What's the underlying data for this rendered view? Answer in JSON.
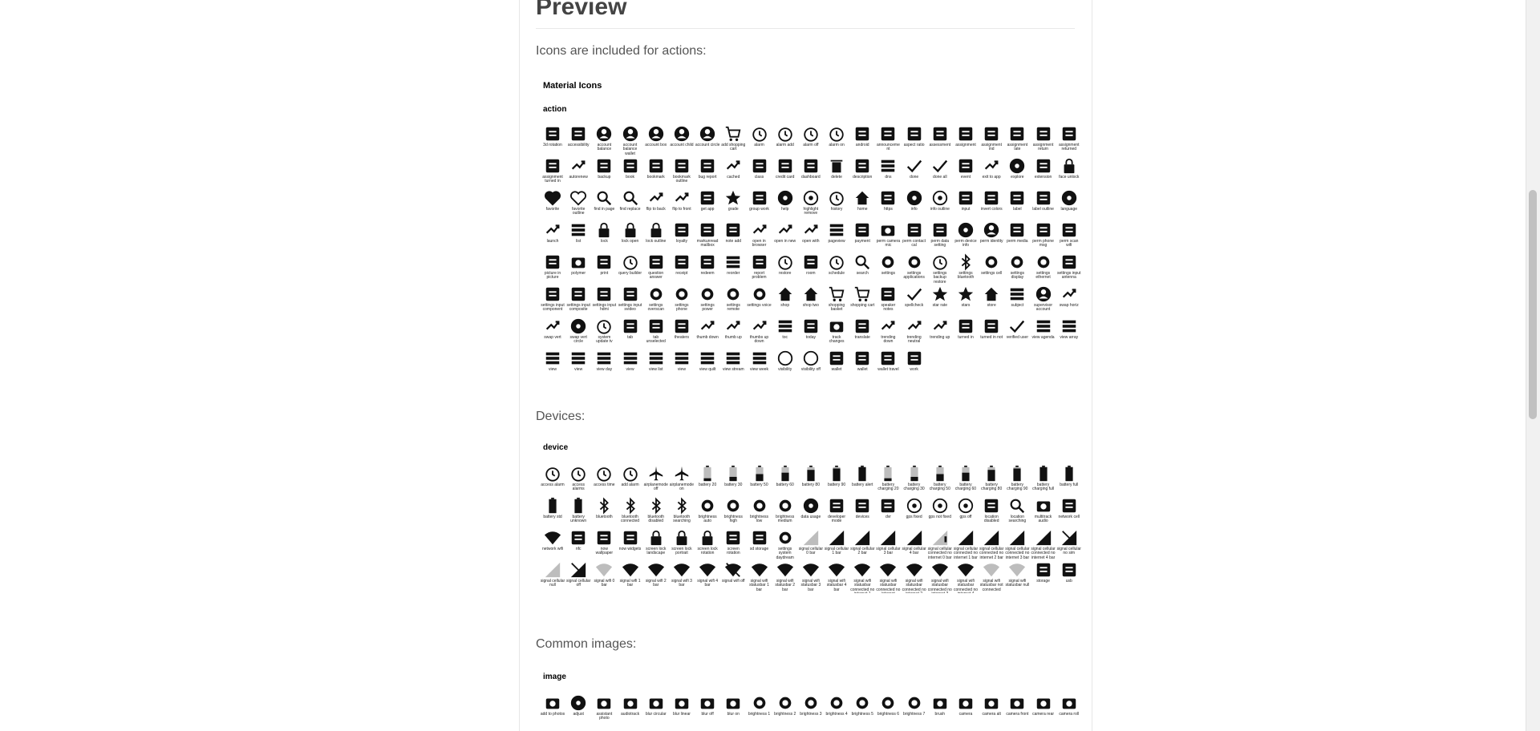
{
  "title": "Preview",
  "sections": [
    {
      "id": "actions",
      "text": "Icons are included for actions:",
      "library": "Material Icons",
      "category": "action",
      "icons": [
        "3d rotation",
        "accessibility",
        "account balance",
        "account balance wallet",
        "account box",
        "account child",
        "account circle",
        "add shopping cart",
        "alarm",
        "alarm add",
        "alarm off",
        "alarm on",
        "android",
        "announcement",
        "aspect ratio",
        "assessment",
        "assignment",
        "assignment ind",
        "assignment late",
        "assignment return",
        "assignment returned",
        "assignment turned in",
        "autorenew",
        "backup",
        "book",
        "bookmark",
        "bookmark outline",
        "bug report",
        "cached",
        "class",
        "credit card",
        "dashboard",
        "delete",
        "description",
        "dns",
        "done",
        "done all",
        "event",
        "exit to app",
        "explore",
        "extension",
        "face unlock",
        "favorite",
        "favorite outline",
        "find in page",
        "find replace",
        "flip to back",
        "flip to front",
        "get app",
        "grade",
        "group work",
        "help",
        "highlight remove",
        "history",
        "home",
        "https",
        "info",
        "info outline",
        "input",
        "invert colors",
        "label",
        "label outline",
        "language",
        "launch",
        "list",
        "lock",
        "lock open",
        "lock outline",
        "loyalty",
        "markunread mailbox",
        "note add",
        "open in browser",
        "open in new",
        "open with",
        "pageview",
        "payment",
        "perm camera mic",
        "perm contact cal",
        "perm data setting",
        "perm device info",
        "perm identity",
        "perm media",
        "perm phone msg",
        "perm scan wifi",
        "picture in picture",
        "polymer",
        "print",
        "query builder",
        "question answer",
        "receipt",
        "redeem",
        "reorder",
        "report problem",
        "restore",
        "room",
        "schedule",
        "search",
        "settings",
        "settings applications",
        "settings backup restore",
        "settings bluetooth",
        "settings cell",
        "settings display",
        "settings ethernet",
        "settings input antenna",
        "settings input component",
        "settings input composite",
        "settings input hdmi",
        "settings input svideo",
        "settings overscan",
        "settings phone",
        "settings power",
        "settings remote",
        "settings voice",
        "shop",
        "shop two",
        "shopping basket",
        "shopping cart",
        "speaker notes",
        "spellcheck",
        "star rate",
        "stars",
        "store",
        "subject",
        "supervisor account",
        "swap horiz",
        "swap vert",
        "swap vert circle",
        "system update tv",
        "tab",
        "tab unselected",
        "theaters",
        "thumb down",
        "thumb up",
        "thumbs up down",
        "toc",
        "today",
        "track changes",
        "translate",
        "trending down",
        "trending neutral",
        "trending up",
        "turned in",
        "turned in not",
        "verified user",
        "view agenda",
        "view array",
        "view",
        "view",
        "view day",
        "view",
        "view list",
        "view",
        "view quilt",
        "view stream",
        "view week",
        "visibility",
        "visibility off",
        "wallet",
        "wallet",
        "wallet travel",
        "work"
      ]
    },
    {
      "id": "devices",
      "text": "Devices:",
      "library": "",
      "category": "device",
      "icons": [
        "access alarm",
        "access alarms",
        "access time",
        "add alarm",
        "airplanemode off",
        "airplanemode on",
        "battery 20",
        "battery 30",
        "battery 50",
        "battery 60",
        "battery 80",
        "battery 90",
        "battery alert",
        "battery charging 20",
        "battery charging 30",
        "battery charging 50",
        "battery charging 60",
        "battery charging 80",
        "battery charging 90",
        "battery charging full",
        "battery full",
        "battery std",
        "battery unknown",
        "bluetooth",
        "bluetooth connected",
        "bluetooth disabled",
        "bluetooth searching",
        "brightness auto",
        "brightness high",
        "brightness low",
        "brightness medium",
        "data usage",
        "developer mode",
        "devices",
        "dvr",
        "gps fixed",
        "gps not fixed",
        "gps off",
        "location disabled",
        "location searching",
        "multitrack audio",
        "network cell",
        "network wifi",
        "nfc",
        "now wallpaper",
        "now widgets",
        "screen lock landscape",
        "screen lock portrait",
        "screen lock rotation",
        "screen rotation",
        "sd storage",
        "settings system daydream",
        "signal cellular 0 bar",
        "signal cellular 1 bar",
        "signal cellular 2 bar",
        "signal cellular 3 bar",
        "signal cellular 4 bar",
        "signal cellular connected no internet 0 bar",
        "signal cellular connected no internet 1 bar",
        "signal cellular connected no internet 2 bar",
        "signal cellular connected no internet 3 bar",
        "signal cellular connected no internet 4 bar",
        "signal cellular no sim",
        "signal cellular null",
        "signal cellular off",
        "signal wifi 0 bar",
        "signal wifi 1 bar",
        "signal wifi 2 bar",
        "signal wifi 3 bar",
        "signal wifi 4 bar",
        "signal wifi off",
        "signal wifi statusbar 1 bar",
        "signal wifi statusbar 2 bar",
        "signal wifi statusbar 3 bar",
        "signal wifi statusbar 4 bar",
        "signal wifi statusbar connected no internet 1",
        "signal wifi statusbar connected no internet",
        "signal wifi statusbar connected no internet 2",
        "signal wifi statusbar connected no internet 3",
        "signal wifi statusbar connected no internet 4",
        "signal wifi statusbar not connected",
        "signal wifi statusbar null",
        "storage",
        "usb"
      ]
    },
    {
      "id": "images",
      "text": "Common images:",
      "library": "",
      "category": "image",
      "icons": [
        "add to photos",
        "adjust",
        "assistant photo",
        "audiotrack",
        "blur circular",
        "blur linear",
        "blur off",
        "blur on",
        "brightness 1",
        "brightness 2",
        "brightness 3",
        "brightness 4",
        "brightness 5",
        "brightness 6",
        "brightness 7",
        "brush",
        "camera",
        "camera alt",
        "camera front",
        "camera rear",
        "camera roll"
      ]
    }
  ],
  "colors": {
    "icon": "#111111",
    "icon_light": "#bdbdbd",
    "text": "#555555"
  }
}
